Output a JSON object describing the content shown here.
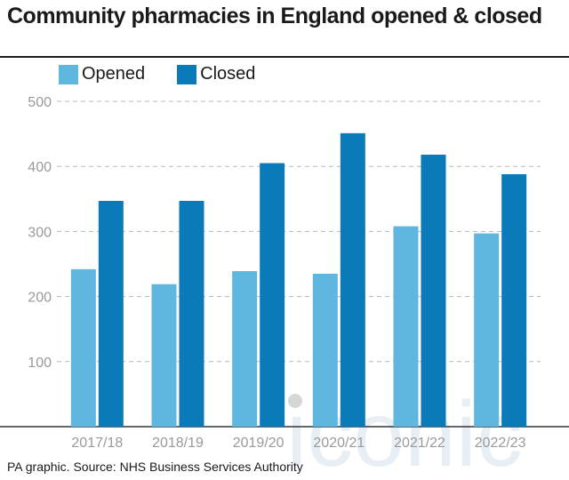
{
  "title": "Community pharmacies in England opened & closed",
  "source": "PA graphic. Source: NHS Business Services Authority",
  "watermark": "iconic",
  "colors": {
    "opened": "#5fb6df",
    "closed": "#0a7ab8",
    "grid": "#b8b8b8",
    "axis_text": "#9a9a9a"
  },
  "chart_data": {
    "type": "bar",
    "title": "Community pharmacies in England opened & closed",
    "categories": [
      "2017/18",
      "2018/19",
      "2019/20",
      "2020/21",
      "2021/22",
      "2022/23"
    ],
    "series": [
      {
        "name": "Opened",
        "values": [
          242,
          219,
          239,
          235,
          308,
          297
        ]
      },
      {
        "name": "Closed",
        "values": [
          347,
          347,
          405,
          451,
          418,
          388
        ]
      }
    ],
    "yticks": [
      100,
      200,
      300,
      400,
      500
    ],
    "ylim": [
      0,
      500
    ],
    "grid": true,
    "legend": "top-left",
    "xlabel": "",
    "ylabel": ""
  }
}
